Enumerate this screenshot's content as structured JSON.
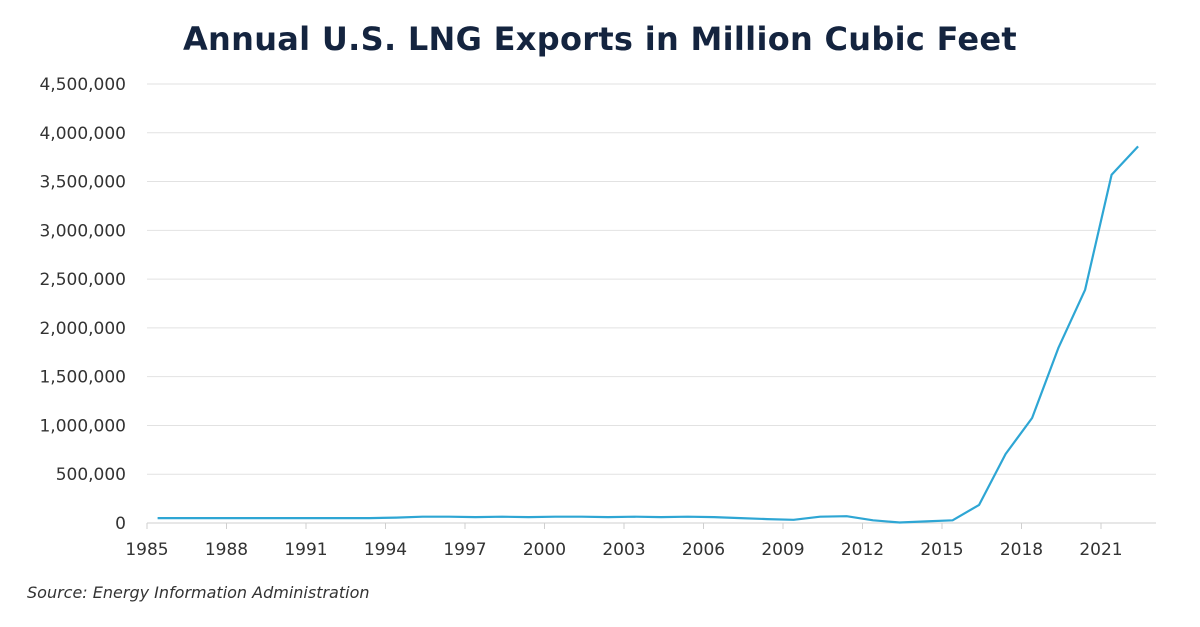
{
  "chart_data": {
    "type": "line",
    "title": "Annual U.S. LNG Exports in Million Cubic Feet",
    "source": "Source: Energy Information Administration",
    "xlabel": "",
    "ylabel": "",
    "xlim": [
      1985,
      2023
    ],
    "ylim": [
      0,
      4500000
    ],
    "x_ticks": [
      "1985",
      "1988",
      "1991",
      "1994",
      "1997",
      "2000",
      "2003",
      "2006",
      "2009",
      "2012",
      "2015",
      "2018",
      "2021"
    ],
    "y_ticks": [
      "0",
      "500,000",
      "1,000,000",
      "1,500,000",
      "2,000,000",
      "2,500,000",
      "3,000,000",
      "3,500,000",
      "4,000,000",
      "4,500,000"
    ],
    "grid": "horizontal",
    "line_color": "#2ea6d4",
    "x": [
      1985,
      1986,
      1987,
      1988,
      1989,
      1990,
      1991,
      1992,
      1993,
      1994,
      1995,
      1996,
      1997,
      1998,
      1999,
      2000,
      2001,
      2002,
      2003,
      2004,
      2005,
      2006,
      2007,
      2008,
      2009,
      2010,
      2011,
      2012,
      2013,
      2014,
      2015,
      2016,
      2017,
      2018,
      2019,
      2020,
      2021,
      2022
    ],
    "values": [
      50000,
      50000,
      50000,
      50000,
      50000,
      50000,
      50000,
      50000,
      50000,
      55000,
      65000,
      65000,
      60000,
      65000,
      60000,
      65000,
      65000,
      60000,
      65000,
      60000,
      65000,
      60000,
      50000,
      40000,
      33000,
      65000,
      70000,
      28000,
      5000,
      16000,
      28000,
      186000,
      707000,
      1076000,
      1800000,
      2390000,
      3570000,
      3860000
    ]
  }
}
